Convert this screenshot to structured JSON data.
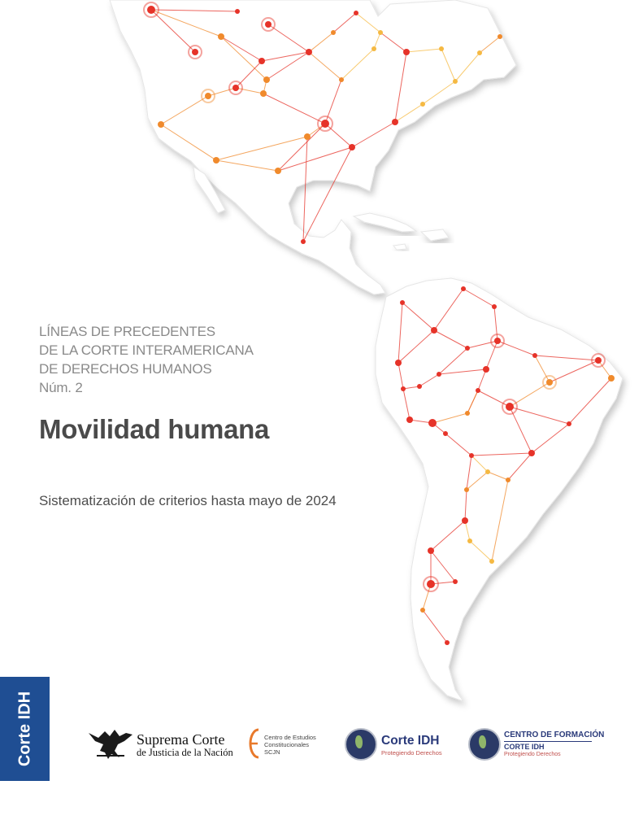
{
  "series": {
    "line1": "LÍNEAS DE PRECEDENTES",
    "line2": "DE LA CORTE INTERAMERICANA",
    "line3": "DE DERECHOS HUMANOS",
    "number": "Núm. 2"
  },
  "title": "Movilidad humana",
  "subtitle": "Sistematización de criterios hasta mayo de 2024",
  "side_tab": "Corte IDH",
  "logos": {
    "scjn": {
      "line1": "Suprema Corte",
      "line2": "de Justicia de la Nación"
    },
    "cec": {
      "line1": "Centro de Estudios",
      "line2": "Constitucionales",
      "line3": "SCJN"
    },
    "corte_idh": {
      "name": "Corte IDH",
      "tagline": "Protegiendo Derechos"
    },
    "centro_formacion": {
      "line1": "CENTRO DE FORMACIÓN",
      "line2": "CORTE IDH",
      "tagline": "Protegiendo Derechos"
    }
  },
  "colors": {
    "map_fill": "#ffffff",
    "network_red": "#e63329",
    "network_orange": "#f08a2c",
    "network_yellow": "#f5b942",
    "tab_blue": "#1f4e93"
  }
}
